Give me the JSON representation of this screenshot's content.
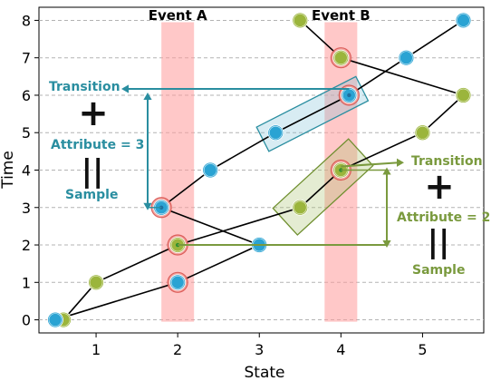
{
  "chart_data": {
    "type": "line",
    "xlabel": "State",
    "ylabel": "Time",
    "xlim": [
      0.3,
      5.75
    ],
    "ylim": [
      -0.35,
      8.35
    ],
    "x_ticks": [
      1,
      2,
      3,
      4,
      5
    ],
    "y_ticks": [
      0,
      1,
      2,
      3,
      4,
      5,
      6,
      7,
      8
    ],
    "grid": "horizontal dashed",
    "events": [
      {
        "label": "Event A",
        "x_center": 2.0,
        "width": 0.4
      },
      {
        "label": "Event B",
        "x_center": 4.0,
        "width": 0.4
      }
    ],
    "series": [
      {
        "color": "#9bb53c",
        "points": [
          [
            0.6,
            0
          ],
          [
            1.0,
            1
          ],
          [
            2.0,
            2
          ],
          [
            3.5,
            3
          ],
          [
            4.0,
            4
          ],
          [
            5.0,
            5
          ],
          [
            5.5,
            6
          ],
          [
            4.0,
            7
          ],
          [
            3.5,
            8
          ]
        ]
      },
      {
        "color": "#2aa3d3",
        "points": [
          [
            0.5,
            0
          ],
          [
            2.0,
            1
          ],
          [
            3.0,
            2
          ],
          [
            1.8,
            3
          ],
          [
            2.4,
            4
          ],
          [
            3.2,
            5
          ],
          [
            4.1,
            6
          ],
          [
            4.8,
            7
          ],
          [
            5.5,
            8
          ]
        ]
      }
    ],
    "highlighted_points": [
      {
        "x": 2.0,
        "y": 1
      },
      {
        "x": 1.8,
        "y": 3
      },
      {
        "x": 2.0,
        "y": 2
      },
      {
        "x": 4.0,
        "y": 4
      },
      {
        "x": 4.1,
        "y": 6
      },
      {
        "x": 4.0,
        "y": 7
      }
    ],
    "annotations": {
      "blue": {
        "color": "#2a8ea0",
        "transition": "Transition",
        "attribute": "Attribute = 3",
        "plus": "+",
        "equals": "||",
        "sample": "Sample"
      },
      "green": {
        "color": "#7a9a3e",
        "transition": "Transition",
        "attribute": "Attribute = 2",
        "plus": "+",
        "equals": "||",
        "sample": "Sample"
      }
    }
  }
}
